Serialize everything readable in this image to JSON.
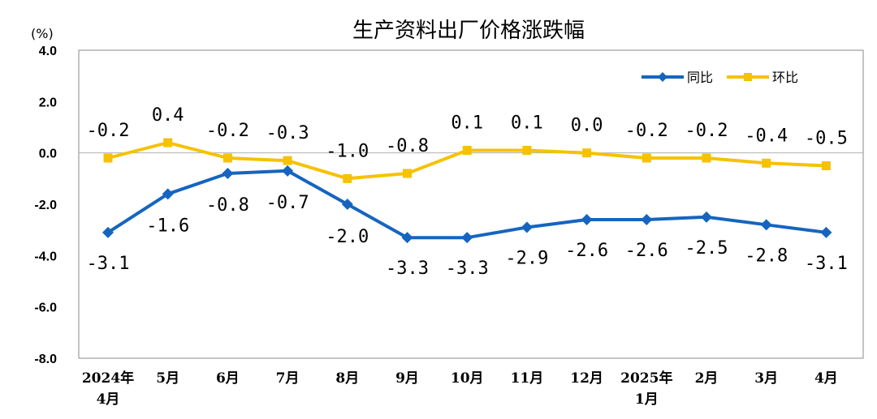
{
  "chart_data": {
    "type": "line",
    "title": "生产资料出厂价格涨跌幅",
    "unit": "(%)",
    "categories": [
      [
        "2024年",
        "4月"
      ],
      [
        "5月"
      ],
      [
        "6月"
      ],
      [
        "7月"
      ],
      [
        "8月"
      ],
      [
        "9月"
      ],
      [
        "10月"
      ],
      [
        "11月"
      ],
      [
        "12月"
      ],
      [
        "2025年",
        "1月"
      ],
      [
        "2月"
      ],
      [
        "3月"
      ],
      [
        "4月"
      ]
    ],
    "yticks": [
      "4.0",
      "2.0",
      "0.0",
      "-2.0",
      "-4.0",
      "-6.0",
      "-8.0"
    ],
    "ylim": [
      -8,
      4
    ],
    "legend_position": "top-right",
    "series": [
      {
        "name": "同比",
        "color": "#1565C0",
        "marker": "diamond",
        "values": [
          -3.1,
          -1.6,
          -0.8,
          -0.7,
          -2.0,
          -3.3,
          -3.3,
          -2.9,
          -2.6,
          -2.6,
          -2.5,
          -2.8,
          -3.1
        ],
        "labels": [
          "-3.1",
          "-1.6",
          "-0.8",
          "-0.7",
          "-2.0",
          "-3.3",
          "-3.3",
          "-2.9",
          "-2.6",
          "-2.6",
          "-2.5",
          "-2.8",
          "-3.1"
        ]
      },
      {
        "name": "环比",
        "color": "#F5C200",
        "marker": "square",
        "values": [
          -0.2,
          0.4,
          -0.2,
          -0.3,
          -1.0,
          -0.8,
          0.1,
          0.1,
          0.0,
          -0.2,
          -0.2,
          -0.4,
          -0.5
        ],
        "labels": [
          "-0.2",
          "0.4",
          "-0.2",
          "-0.3",
          "-1.0",
          "-0.8",
          "0.1",
          "0.1",
          "0.0",
          "-0.2",
          "-0.2",
          "-0.4",
          "-0.5"
        ]
      }
    ]
  }
}
